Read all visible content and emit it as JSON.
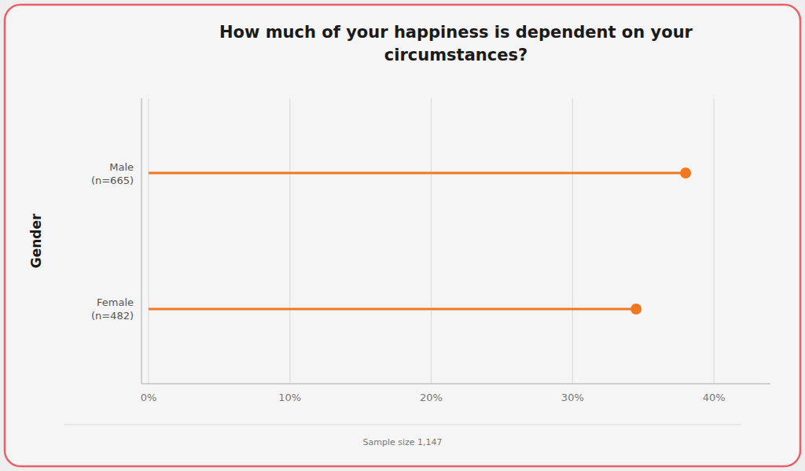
{
  "chart_data": {
    "type": "lollipop",
    "orientation": "horizontal",
    "title": "How much of your happiness is dependent on your\ncircumstances?",
    "ylabel": "Gender",
    "annotation": "Sample size 1,147",
    "categories": [
      "Male\n(n=665)",
      "Female\n(n=482)"
    ],
    "values": [
      0.38,
      0.345
    ],
    "color": "#F07820",
    "xlim": [
      -0.005,
      0.44
    ],
    "xticks": [
      {
        "value": 0.0,
        "label": "0%"
      },
      {
        "value": 0.1,
        "label": "10%"
      },
      {
        "value": 0.2,
        "label": "20%"
      },
      {
        "value": 0.3,
        "label": "30%"
      },
      {
        "value": 0.4,
        "label": "40%"
      }
    ],
    "grid": true
  }
}
